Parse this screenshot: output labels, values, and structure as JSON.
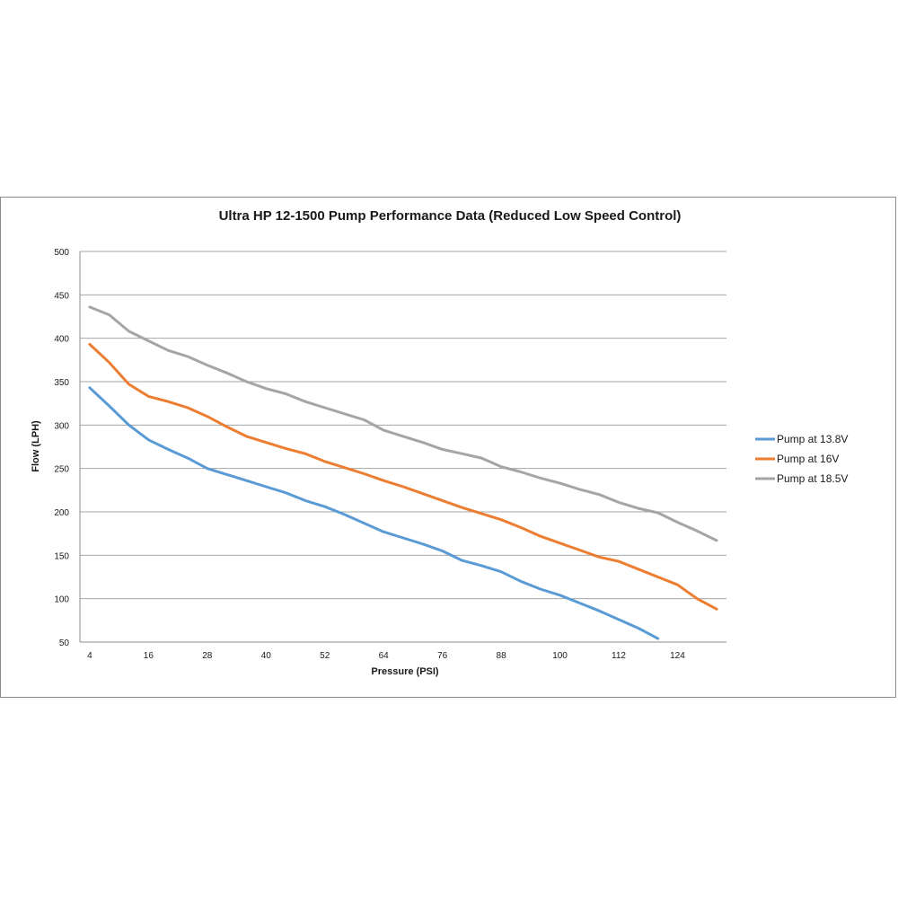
{
  "chart_data": {
    "type": "line",
    "title": "Ultra HP 12-1500 Pump Performance Data (Reduced Low Speed  Control)",
    "xlabel": "Pressure (PSI)",
    "ylabel": "Flow (LPH)",
    "ylim": [
      50,
      500
    ],
    "y_ticks": [
      50,
      100,
      150,
      200,
      250,
      300,
      350,
      400,
      450,
      500
    ],
    "x_tick_labels": [
      "4",
      "16",
      "28",
      "40",
      "52",
      "64",
      "76",
      "88",
      "100",
      "112",
      "124"
    ],
    "x": [
      4,
      8,
      12,
      16,
      20,
      24,
      28,
      32,
      36,
      40,
      44,
      48,
      52,
      56,
      60,
      64,
      68,
      72,
      76,
      80,
      84,
      88,
      92,
      96,
      100,
      104,
      108,
      112,
      116,
      120,
      124,
      128,
      132
    ],
    "grid": true,
    "legend_position": "right",
    "series": [
      {
        "name": "Pump at 13.8V",
        "color": "#5b9bd5",
        "values": [
          343,
          322,
          300,
          283,
          272,
          262,
          250,
          243,
          236,
          229,
          222,
          213,
          206,
          197,
          187,
          177,
          170,
          163,
          155,
          144,
          138,
          131,
          120,
          111,
          104,
          95,
          86,
          76,
          66,
          54,
          null,
          null,
          null
        ]
      },
      {
        "name": "Pump at 16V",
        "color": "#ed7d31",
        "values": [
          393,
          372,
          347,
          333,
          327,
          320,
          310,
          298,
          287,
          280,
          273,
          267,
          258,
          251,
          244,
          236,
          229,
          221,
          213,
          205,
          198,
          191,
          182,
          172,
          164,
          156,
          148,
          143,
          134,
          125,
          116,
          100,
          88
        ]
      },
      {
        "name": "Pump at 18.5V",
        "color": "#a5a5a5",
        "values": [
          436,
          427,
          408,
          397,
          386,
          379,
          369,
          360,
          350,
          342,
          336,
          327,
          320,
          313,
          306,
          294,
          287,
          280,
          272,
          267,
          262,
          252,
          246,
          239,
          233,
          226,
          220,
          211,
          204,
          199,
          188,
          178,
          167
        ]
      }
    ]
  }
}
